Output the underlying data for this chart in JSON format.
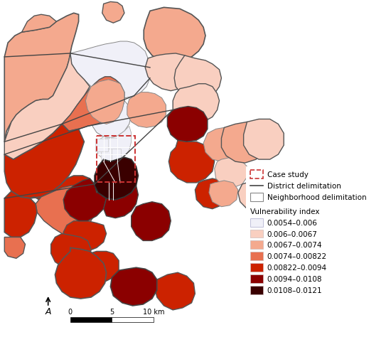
{
  "legend_items": [
    {
      "label": "0.0054–0.006",
      "color": "#f0f0f8",
      "edge": "#aaaacc"
    },
    {
      "label": "0.006–0.0067",
      "color": "#f9cfc0",
      "edge": "#ccbbbb"
    },
    {
      "label": "0.0067–0.0074",
      "color": "#f4a98e",
      "edge": "#ccbbbb"
    },
    {
      "label": "0.0074–0.00822",
      "color": "#e87050",
      "edge": "#ccbbbb"
    },
    {
      "label": "0.00822–0.0094",
      "color": "#cc2200",
      "edge": "#ccbbbb"
    },
    {
      "label": "0.0094–0.0108",
      "color": "#8b0000",
      "edge": "#ccbbbb"
    },
    {
      "label": "0.0108–0.0121",
      "color": "#3a0000",
      "edge": "#ccbbbb"
    }
  ],
  "special_items": [
    {
      "label": "Case study",
      "type": "dashed_rect",
      "color": "#cc3333"
    },
    {
      "label": "District delimitation",
      "type": "line",
      "color": "#555555"
    },
    {
      "label": "Neighborhood delimitation",
      "type": "rect",
      "color": "#ffffff",
      "edge": "#aaaaaa"
    }
  ],
  "vulnerability_title": "Vulnerability index",
  "background": "#ffffff",
  "c0": "#f0f0f8",
  "c1": "#f9cfc0",
  "c2": "#f4a98e",
  "c3": "#e87050",
  "c4": "#cc2200",
  "c5": "#8b0000",
  "c6": "#3a0000"
}
